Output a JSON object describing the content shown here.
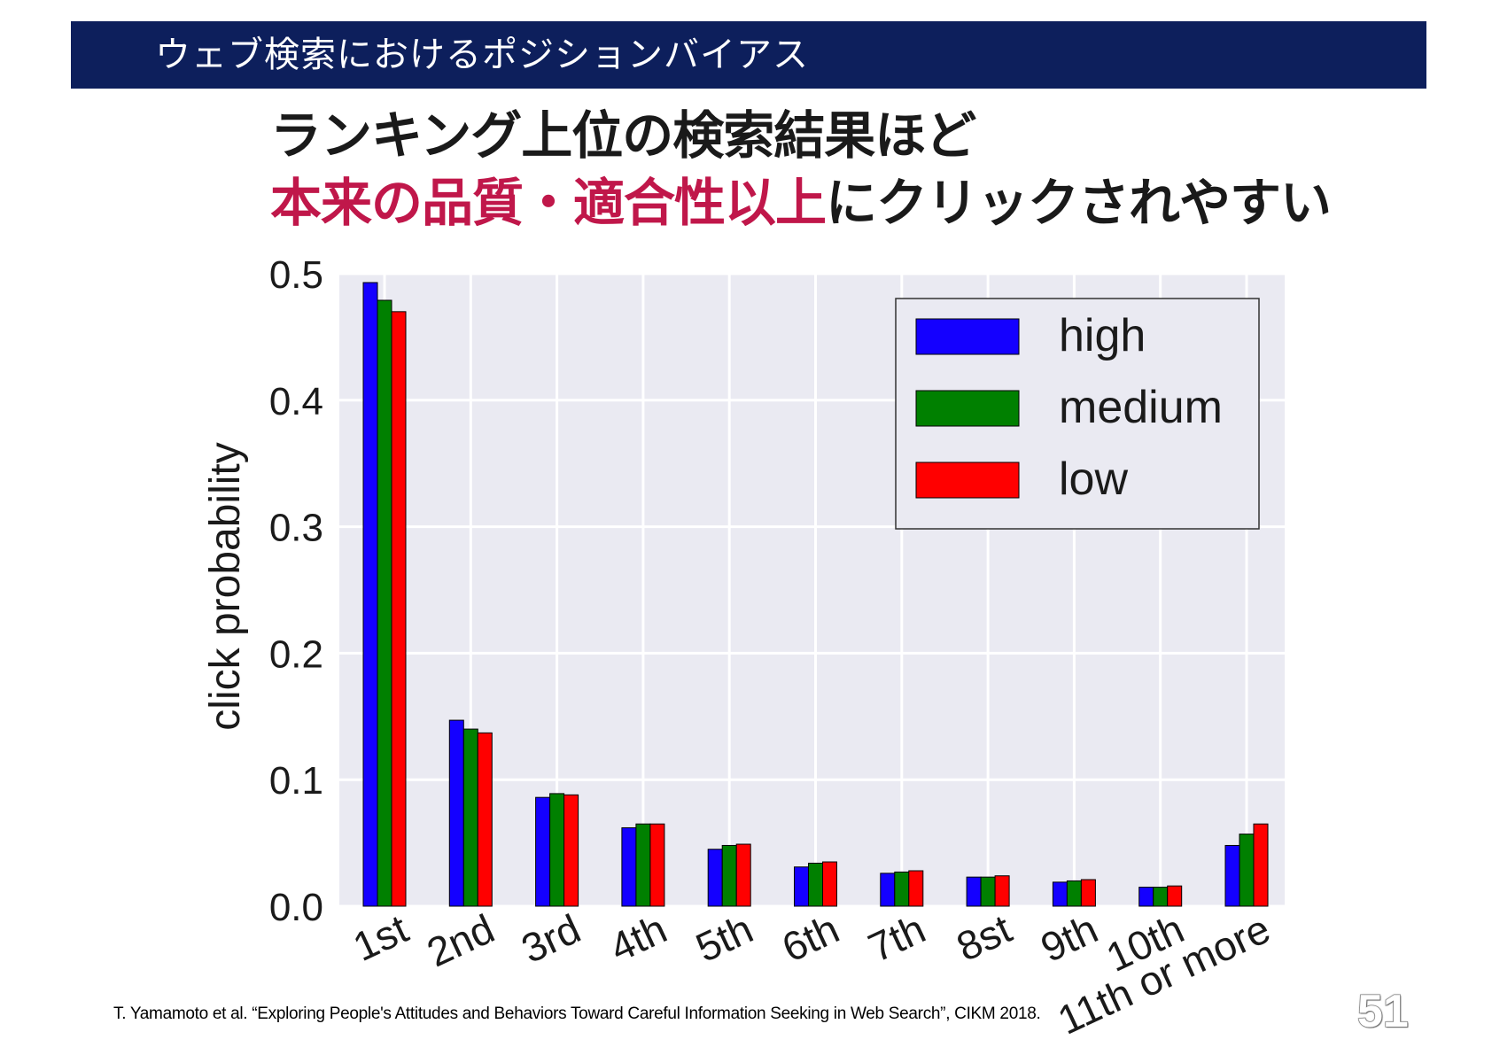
{
  "header": {
    "title": "ウェブ検索におけるポジションバイアス"
  },
  "headline": {
    "line1": "ランキング上位の検索結果ほど",
    "line2_emphasis": "本来の品質・適合性以上",
    "line2_rest": "にクリックされやすい"
  },
  "colors": {
    "header_bg": "#0d1f5c",
    "emphasis": "#c0174a",
    "plot_bg": "#eaeaf2",
    "grid": "#ffffff"
  },
  "chart_data": {
    "type": "bar",
    "ylabel": "click probability",
    "xlabel": "",
    "ylim": [
      0,
      0.5
    ],
    "yticks": [
      "0.0",
      "0.1",
      "0.2",
      "0.3",
      "0.4",
      "0.5"
    ],
    "categories": [
      "1st",
      "2nd",
      "3rd",
      "4th",
      "5th",
      "6th",
      "7th",
      "8st",
      "9th",
      "10th",
      "11th or more"
    ],
    "series": [
      {
        "name": "high",
        "color": "#1400ff",
        "values": [
          0.493,
          0.147,
          0.086,
          0.062,
          0.045,
          0.031,
          0.026,
          0.023,
          0.019,
          0.015,
          0.048
        ]
      },
      {
        "name": "medium",
        "color": "#008000",
        "values": [
          0.479,
          0.14,
          0.089,
          0.065,
          0.048,
          0.034,
          0.027,
          0.023,
          0.02,
          0.015,
          0.057
        ]
      },
      {
        "name": "low",
        "color": "#ff0000",
        "values": [
          0.47,
          0.137,
          0.088,
          0.065,
          0.049,
          0.035,
          0.028,
          0.024,
          0.021,
          0.016,
          0.065
        ]
      }
    ],
    "grid": true,
    "legend_position": "top-right"
  },
  "citation": "T. Yamamoto et al. “Exploring People's Attitudes and Behaviors Toward Careful Information Seeking in Web Search”, CIKM 2018.",
  "page_number": "51"
}
